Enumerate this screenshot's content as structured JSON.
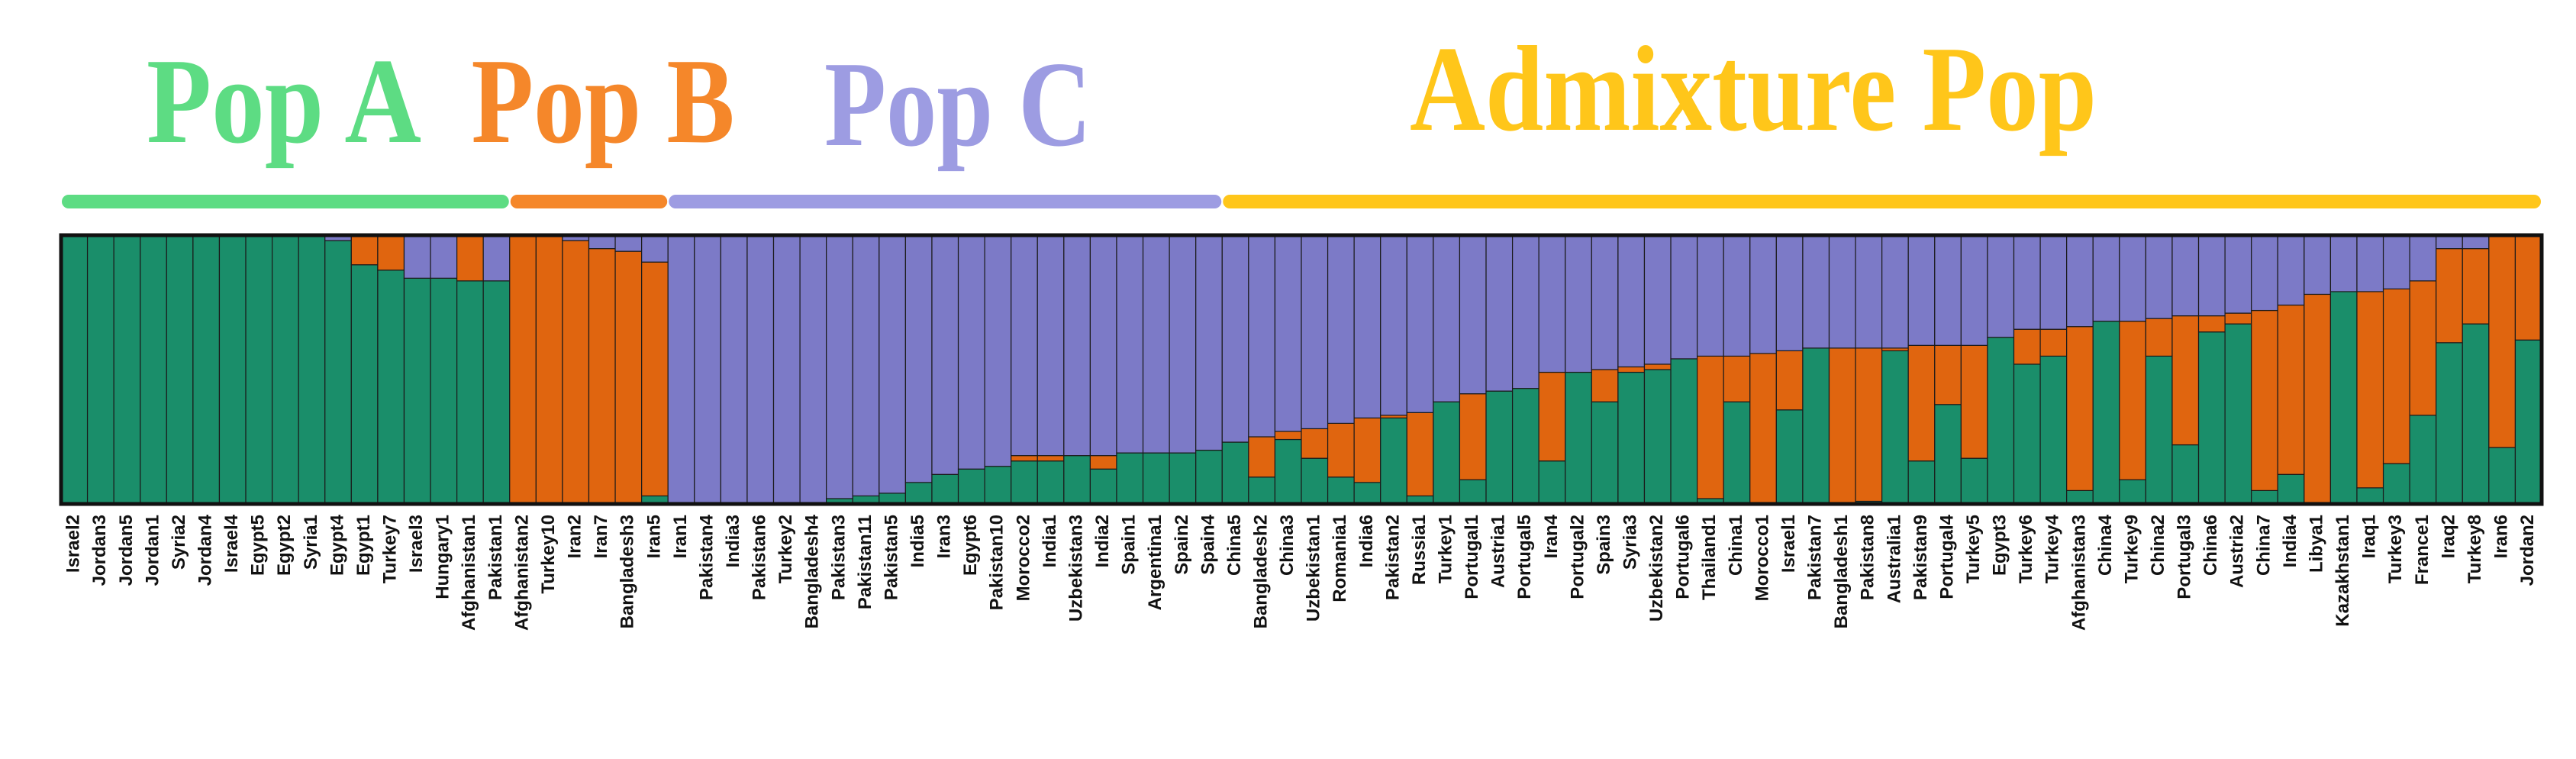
{
  "chart_data": {
    "type": "bar",
    "stacked": true,
    "ylim": [
      0,
      100
    ],
    "annotations": [
      {
        "text": "Pop A",
        "color": "#5ddc83"
      },
      {
        "text": "Pop B",
        "color": "#f5872a"
      },
      {
        "text": "Pop C",
        "color": "#9d9ce2"
      },
      {
        "text": "Admixture Pop",
        "color": "#ffc61a"
      }
    ],
    "categories": [
      "Israel2",
      "Jordan3",
      "Jordan5",
      "Jordan1",
      "Syria2",
      "Jordan4",
      "Israel4",
      "Egypt5",
      "Egypt2",
      "Syria1",
      "Egypt4",
      "Egypt1",
      "Turkey7",
      "Israel3",
      "Hungary1",
      "Afghanistan1",
      "Pakistan1",
      "Afghanistan2",
      "Turkey10",
      "Iran2",
      "Iran7",
      "Bangladesh3",
      "Iran5",
      "Iran1",
      "Pakistan4",
      "India3",
      "Pakistan6",
      "Turkey2",
      "Bangladesh4",
      "Pakistan3",
      "Pakistan11",
      "Pakistan5",
      "India5",
      "Iran3",
      "Egypt6",
      "Pakistan10",
      "Morocco2",
      "India1",
      "Uzbekistan3",
      "India2",
      "Spain1",
      "Argentina1",
      "Spain2",
      "Spain4",
      "China5",
      "Bangladesh2",
      "China3",
      "Uzbekistan1",
      "Romania1",
      "India6",
      "Pakistan2",
      "Russia1",
      "Turkey1",
      "Portugal1",
      "Austria1",
      "Portugal5",
      "Iran4",
      "Portugal2",
      "Spain3",
      "Syria3",
      "Uzbekistan2",
      "Portugal6",
      "Thailand1",
      "China1",
      "Morocco1",
      "Israel1",
      "Pakistan7",
      "Bangladesh1",
      "Pakistan8",
      "Australia1",
      "Pakistan9",
      "Portugal4",
      "Turkey5",
      "Egypt3",
      "Turkey6",
      "Turkey4",
      "Afghanistan3",
      "China4",
      "Turkey9",
      "China2",
      "Portugal3",
      "China6",
      "Austria2",
      "China7",
      "India4",
      "Libya1",
      "Kazakhstan1",
      "Iraq1",
      "Turkey3",
      "France1",
      "Iraq2",
      "Turkey8",
      "Iran6",
      "Jordan2"
    ],
    "series": [
      {
        "color": "#1a8e6a",
        "values": [
          100,
          100,
          100,
          100,
          100,
          100,
          100,
          100,
          100,
          100,
          98,
          89,
          87,
          84,
          84,
          83,
          83,
          0,
          0,
          0,
          0,
          0,
          3,
          0,
          0,
          0,
          0,
          0,
          0,
          2,
          3,
          4,
          8,
          11,
          13,
          14,
          16,
          16,
          18,
          13,
          19,
          19,
          19,
          20,
          23,
          10,
          24,
          17,
          10,
          8,
          32,
          3,
          38,
          9,
          42,
          43,
          16,
          49,
          38,
          49,
          50,
          54,
          2,
          38,
          0,
          35,
          58,
          0,
          1,
          57,
          16,
          37,
          17,
          62,
          52,
          55,
          5,
          68,
          9,
          55,
          22,
          64,
          67,
          5,
          11,
          0,
          79,
          6,
          15,
          33,
          60,
          67,
          21,
          61
        ]
      },
      {
        "color": "#e0650f",
        "values": [
          0,
          0,
          0,
          0,
          0,
          0,
          0,
          0,
          0,
          0,
          0,
          11,
          13,
          0,
          0,
          17,
          0,
          100,
          100,
          98,
          95,
          94,
          87,
          0,
          0,
          0,
          0,
          0,
          0,
          0,
          0,
          0,
          0,
          0,
          0,
          0,
          2,
          2,
          0,
          5,
          0,
          0,
          0,
          0,
          0,
          15,
          3,
          11,
          20,
          24,
          1,
          31,
          0,
          32,
          0,
          0,
          33,
          0,
          12,
          2,
          2,
          0,
          53,
          17,
          56,
          22,
          0,
          58,
          57,
          1,
          43,
          22,
          42,
          0,
          13,
          10,
          61,
          0,
          59,
          14,
          48,
          6,
          4,
          67,
          63,
          78,
          0,
          73,
          65,
          50,
          35,
          28,
          79,
          39
        ]
      },
      {
        "color": "#7c7ac7",
        "values": [
          0,
          0,
          0,
          0,
          0,
          0,
          0,
          0,
          0,
          0,
          2,
          0,
          0,
          16,
          16,
          0,
          17,
          0,
          0,
          2,
          5,
          6,
          10,
          100,
          100,
          100,
          100,
          100,
          100,
          98,
          97,
          96,
          92,
          89,
          87,
          86,
          82,
          82,
          82,
          82,
          81,
          81,
          81,
          80,
          77,
          75,
          73,
          72,
          70,
          68,
          67,
          66,
          62,
          59,
          58,
          57,
          51,
          51,
          50,
          49,
          48,
          46,
          45,
          45,
          44,
          43,
          42,
          42,
          42,
          42,
          41,
          41,
          41,
          38,
          35,
          35,
          34,
          32,
          32,
          31,
          30,
          30,
          29,
          28,
          26,
          22,
          21,
          21,
          20,
          17,
          5,
          5,
          0,
          0
        ]
      }
    ]
  }
}
